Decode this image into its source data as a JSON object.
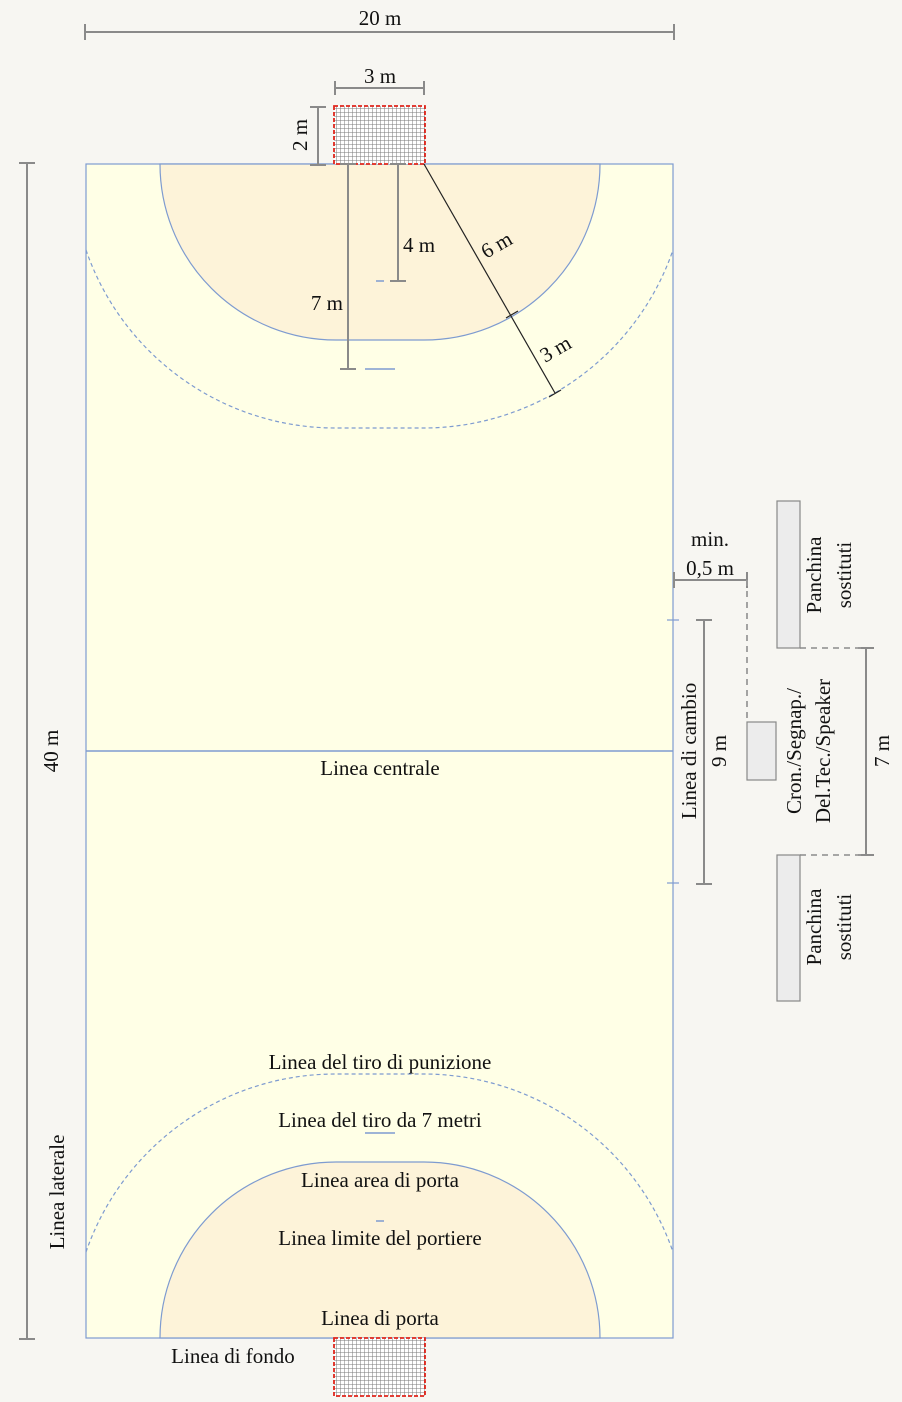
{
  "colors": {
    "background": "#f7f6f2",
    "court": "#ffffe6",
    "goal_area": "#fdf3d9",
    "court_line": "#7e9bd0",
    "dimension_line": "#8a8a8a",
    "goal_frame": "#e0251b",
    "bench_fill": "#ececec",
    "bench_stroke": "#888888"
  },
  "dimensions": {
    "width": "20 m",
    "length": "40 m",
    "goal_width": "3 m",
    "goal_depth": "2 m",
    "goalkeeper_limit": "4 m",
    "seven_meter": "7 m",
    "goal_area_radius": "6 m",
    "free_throw_offset": "3 m",
    "substitution_min_prefix": "min.",
    "substitution_min_value": "0,5 m",
    "substitution_length": "9 m",
    "bench_zone": "7 m"
  },
  "labels": {
    "center_line": "Linea centrale",
    "free_throw_line": "Linea del tiro di punizione",
    "seven_meter_line": "Linea del tiro da 7 metri",
    "goal_area_line": "Linea area di porta",
    "goalkeeper_limit_line": "Linea limite del portiere",
    "goal_line": "Linea di porta",
    "end_line": "Linea di fondo",
    "side_line": "Linea laterale",
    "substitution_line": "Linea di cambio",
    "bench_top_1": "Panchina",
    "bench_top_2": "sostituti",
    "bench_bottom_1": "Panchina",
    "bench_bottom_2": "sostituti",
    "officials_1": "Cron./Segnap./",
    "officials_2": "Del.Tec./Speaker"
  }
}
